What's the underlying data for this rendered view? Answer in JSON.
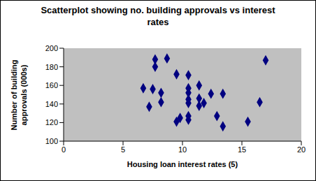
{
  "chart_data": {
    "type": "scatter",
    "title": "Scatterplot showing no. building approvals vs interest rates",
    "x_label": "Housing loan interest rates (5)",
    "y_label": "Number of building approvals (000s)",
    "x": [
      6.7,
      7.2,
      7.5,
      7.7,
      7.7,
      8.2,
      8.2,
      8.7,
      9.5,
      9.5,
      9.8,
      10.5,
      10.5,
      10.5,
      10.5,
      10.5,
      10.5,
      10.5,
      11.4,
      11.4,
      11.4,
      11.8,
      12.4,
      12.9,
      13.4,
      13.4,
      15.5,
      16.5,
      17
    ],
    "values": [
      157,
      137,
      156,
      188,
      180,
      152,
      142,
      189,
      172,
      121,
      125,
      171,
      157,
      152,
      145,
      141,
      127,
      123,
      160,
      146,
      138,
      141,
      151,
      127,
      116,
      151,
      121,
      142,
      187
    ],
    "color": "#000080",
    "marker": "diamond",
    "xlim": [
      0,
      20
    ],
    "xticks": [
      0,
      5,
      10,
      15,
      20
    ],
    "ylim": [
      100,
      200
    ],
    "yticks": [
      100,
      120,
      140,
      160,
      180,
      200
    ],
    "grid": false
  }
}
